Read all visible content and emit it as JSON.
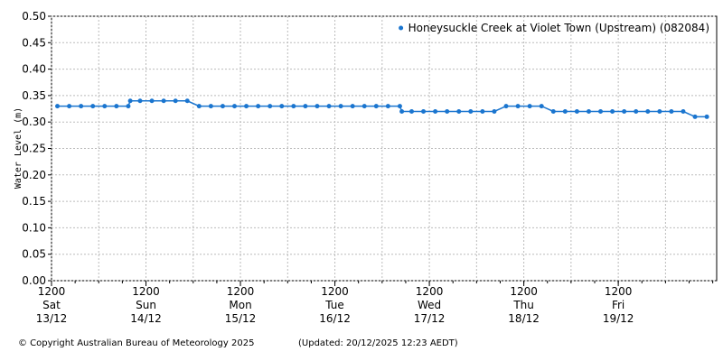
{
  "chart_data": {
    "type": "line",
    "y_label": "Water Level (m)",
    "footer_left": "© Copyright Australian Bureau of Meteorology 2025",
    "footer_right": "(Updated: 20/12/2025 12:23 AEDT)",
    "xlim": [
      0,
      169
    ],
    "xticks": [
      {
        "value": 0,
        "label": [
          "1200",
          "Sat",
          "13/12"
        ]
      },
      {
        "value": 24,
        "label": [
          "1200",
          "Sun",
          "14/12"
        ]
      },
      {
        "value": 48,
        "label": [
          "1200",
          "Mon",
          "15/12"
        ]
      },
      {
        "value": 72,
        "label": [
          "1200",
          "Tue",
          "16/12"
        ]
      },
      {
        "value": 96,
        "label": [
          "1200",
          "Wed",
          "17/12"
        ]
      },
      {
        "value": 120,
        "label": [
          "1200",
          "Thu",
          "18/12"
        ]
      },
      {
        "value": 144,
        "label": [
          "1200",
          "Fri",
          "19/12"
        ]
      }
    ],
    "ylim": [
      0,
      0.5
    ],
    "yticks": [
      {
        "value": 0,
        "label": "0.00"
      },
      {
        "value": 0.05,
        "label": "0.05"
      },
      {
        "value": 0.1,
        "label": "0.10"
      },
      {
        "value": 0.15,
        "label": "0.15"
      },
      {
        "value": 0.2,
        "label": "0.20"
      },
      {
        "value": 0.25,
        "label": "0.25"
      },
      {
        "value": 0.3,
        "label": "0.30"
      },
      {
        "value": 0.35,
        "label": "0.35"
      },
      {
        "value": 0.4,
        "label": "0.40"
      },
      {
        "value": 0.45,
        "label": "0.45"
      },
      {
        "value": 0.5,
        "label": "0.50"
      }
    ],
    "grid": true,
    "legend": "top-right",
    "series": [
      {
        "name": "Honeysuckle Creek at Violet Town (Upstream) (082084)",
        "color": "#1a75cf",
        "x": [
          1.5,
          4.5,
          7.5,
          10.5,
          13.5,
          16.5,
          19.5,
          20,
          22.5,
          25.5,
          28.5,
          31.5,
          34.5,
          37.5,
          40.5,
          43.5,
          46.5,
          49.5,
          52.5,
          55.5,
          58.5,
          61.5,
          64.5,
          67.5,
          70.5,
          73.5,
          76.5,
          79.5,
          82.5,
          85.5,
          88.5,
          89,
          91.5,
          94.5,
          97.5,
          100.5,
          103.5,
          106.5,
          109.5,
          112.5,
          115.5,
          118.5,
          121.5,
          124.5,
          127.5,
          130.5,
          133.5,
          136.5,
          139.5,
          142.5,
          145.5,
          148.5,
          151.5,
          154.5,
          157.5,
          160.5,
          163.5,
          166.5
        ],
        "values": [
          0.33,
          0.33,
          0.33,
          0.33,
          0.33,
          0.33,
          0.33,
          0.34,
          0.34,
          0.34,
          0.34,
          0.34,
          0.34,
          0.33,
          0.33,
          0.33,
          0.33,
          0.33,
          0.33,
          0.33,
          0.33,
          0.33,
          0.33,
          0.33,
          0.33,
          0.33,
          0.33,
          0.33,
          0.33,
          0.33,
          0.33,
          0.32,
          0.32,
          0.32,
          0.32,
          0.32,
          0.32,
          0.32,
          0.32,
          0.32,
          0.33,
          0.33,
          0.33,
          0.33,
          0.32,
          0.32,
          0.32,
          0.32,
          0.32,
          0.32,
          0.32,
          0.32,
          0.32,
          0.32,
          0.32,
          0.32,
          0.31,
          0.31
        ]
      }
    ]
  }
}
